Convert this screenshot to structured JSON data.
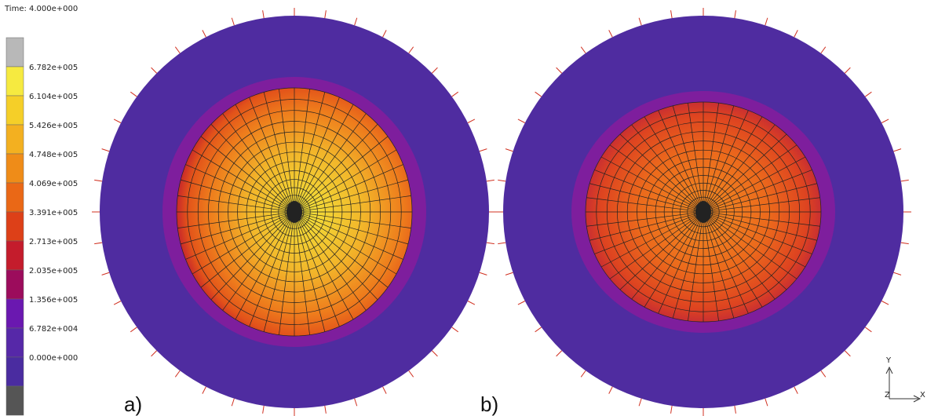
{
  "header": {
    "time": "Time:  4.000e+000"
  },
  "legend": {
    "labels": [
      "6.782e+005",
      "6.104e+005",
      "5.426e+005",
      "4.748e+005",
      "4.069e+005",
      "3.391e+005",
      "2.713e+005",
      "2.035e+005",
      "1.356e+005",
      "6.782e+004",
      "0.000e+000"
    ]
  },
  "panels": [
    {
      "label": "a)"
    },
    {
      "label": "b)"
    }
  ],
  "triad": {
    "y": "Y",
    "x": "X",
    "z": "Z"
  }
}
